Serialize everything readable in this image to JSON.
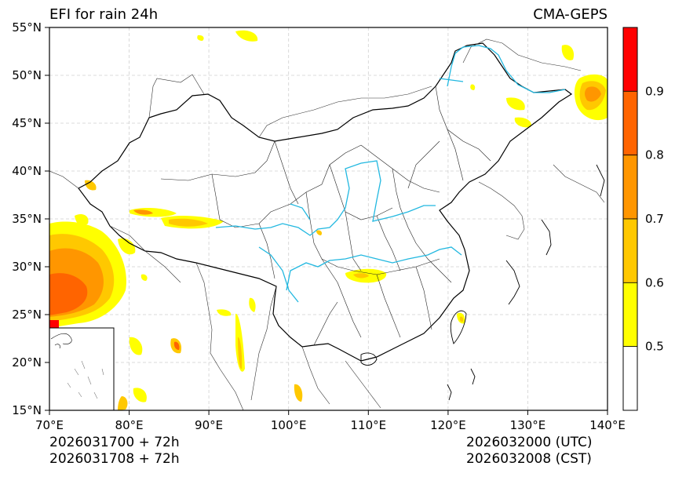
{
  "title_left": "EFI for rain 24h",
  "title_right": "CMA-GEPS",
  "footer": {
    "init_utc": "2026031700 + 72h",
    "init_cst": "2026031708 + 72h",
    "valid_utc": "2026032000 (UTC)",
    "valid_cst": "2026032008 (CST)"
  },
  "axes": {
    "lon_ticks": [
      "70°E",
      "80°E",
      "90°E",
      "100°E",
      "110°E",
      "120°E",
      "130°E",
      "140°E"
    ],
    "lat_ticks": [
      "55°N",
      "50°N",
      "45°N",
      "40°N",
      "35°N",
      "30°N",
      "25°N",
      "20°N",
      "15°N"
    ],
    "lon_range": [
      70,
      140
    ],
    "lat_range": [
      15,
      55
    ]
  },
  "colorbar": {
    "levels": [
      0.5,
      0.6,
      0.7,
      0.8,
      0.9
    ],
    "labels": [
      "0.5",
      "0.6",
      "0.7",
      "0.8",
      "0.9"
    ],
    "colors": [
      "#ffffff",
      "#ffff00",
      "#ffc800",
      "#ff9600",
      "#ff6400",
      "#ff0000"
    ]
  },
  "colors": {
    "rivers": "#22b8e0",
    "borders": "#000000",
    "grid": "#cccccc"
  }
}
